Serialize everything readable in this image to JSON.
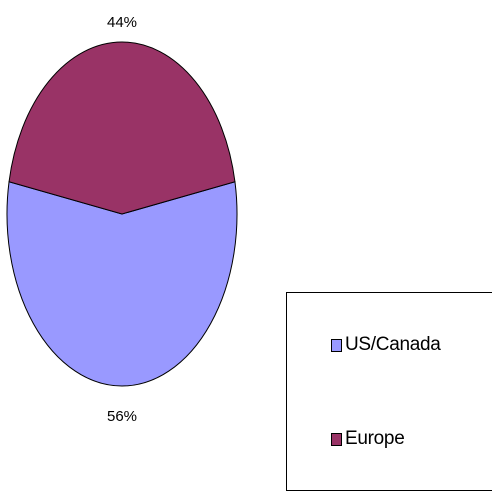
{
  "chart_data": {
    "type": "pie",
    "series": [
      {
        "name": "US/Canada",
        "value": 56,
        "label": "56%",
        "color": "#9999ff"
      },
      {
        "name": "Europe",
        "value": 44,
        "label": "44%",
        "color": "#993366"
      }
    ],
    "legend": {
      "position": "bottom-right",
      "items": [
        "US/Canada",
        "Europe"
      ]
    },
    "edge_color": "#000000"
  }
}
